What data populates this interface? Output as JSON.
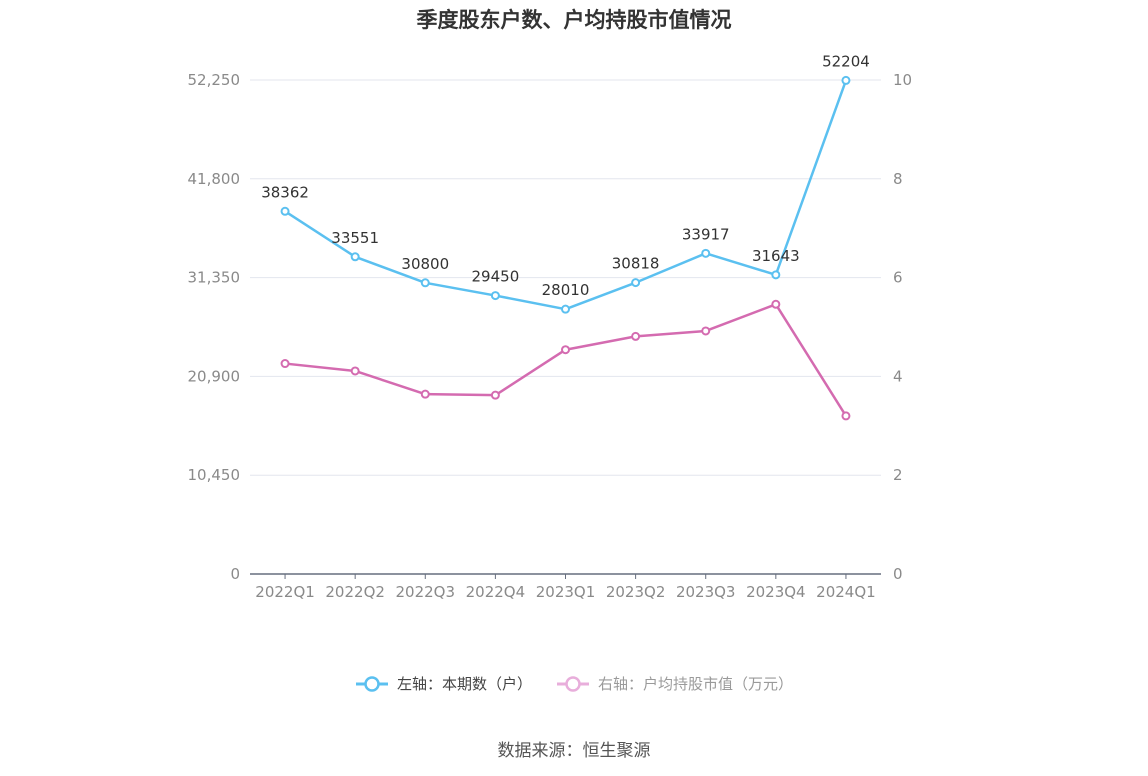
{
  "title": "季度股东户数、户均持股市值情况",
  "source": "数据来源：恒生聚源",
  "colors": {
    "series1": "#5bc0f0",
    "series2": "#d46bb0",
    "grid": "#e3e6ee",
    "axis": "#666e7e",
    "tick": "#8a8a8a"
  },
  "legend": [
    {
      "label": "左轴：本期数（户）",
      "icon": "circle-line-icon"
    },
    {
      "label": "右轴：户均持股市值（万元）",
      "icon": "circle-line-icon"
    }
  ],
  "chart_data": {
    "type": "line",
    "categories": [
      "2022Q1",
      "2022Q2",
      "2022Q3",
      "2022Q4",
      "2023Q1",
      "2023Q2",
      "2023Q3",
      "2023Q4",
      "2024Q1"
    ],
    "left_axis": {
      "ylim": [
        0,
        52250
      ],
      "ticks": [
        "0",
        "10,450",
        "20,900",
        "31,350",
        "41,800",
        "52,250"
      ],
      "tick_values": [
        0,
        10450,
        20900,
        31350,
        41800,
        52250
      ]
    },
    "right_axis": {
      "ylim": [
        0,
        10
      ],
      "ticks": [
        "0",
        "2",
        "4",
        "6",
        "8",
        "10"
      ],
      "tick_values": [
        0,
        2,
        4,
        6,
        8,
        10
      ]
    },
    "series": [
      {
        "name": "左轴：本期数（户）",
        "axis": "left",
        "values": [
          38362,
          33551,
          30800,
          29450,
          28010,
          30818,
          33917,
          31643,
          52204
        ],
        "labels": [
          "38362",
          "33551",
          "30800",
          "29450",
          "28010",
          "30818",
          "33917",
          "31643",
          "52204"
        ]
      },
      {
        "name": "右轴：户均持股市值（万元）",
        "axis": "right",
        "values": [
          4.26,
          4.11,
          3.64,
          3.62,
          4.54,
          4.81,
          4.92,
          5.46,
          3.2
        ]
      }
    ],
    "grid": true,
    "legend_position": "bottom"
  }
}
